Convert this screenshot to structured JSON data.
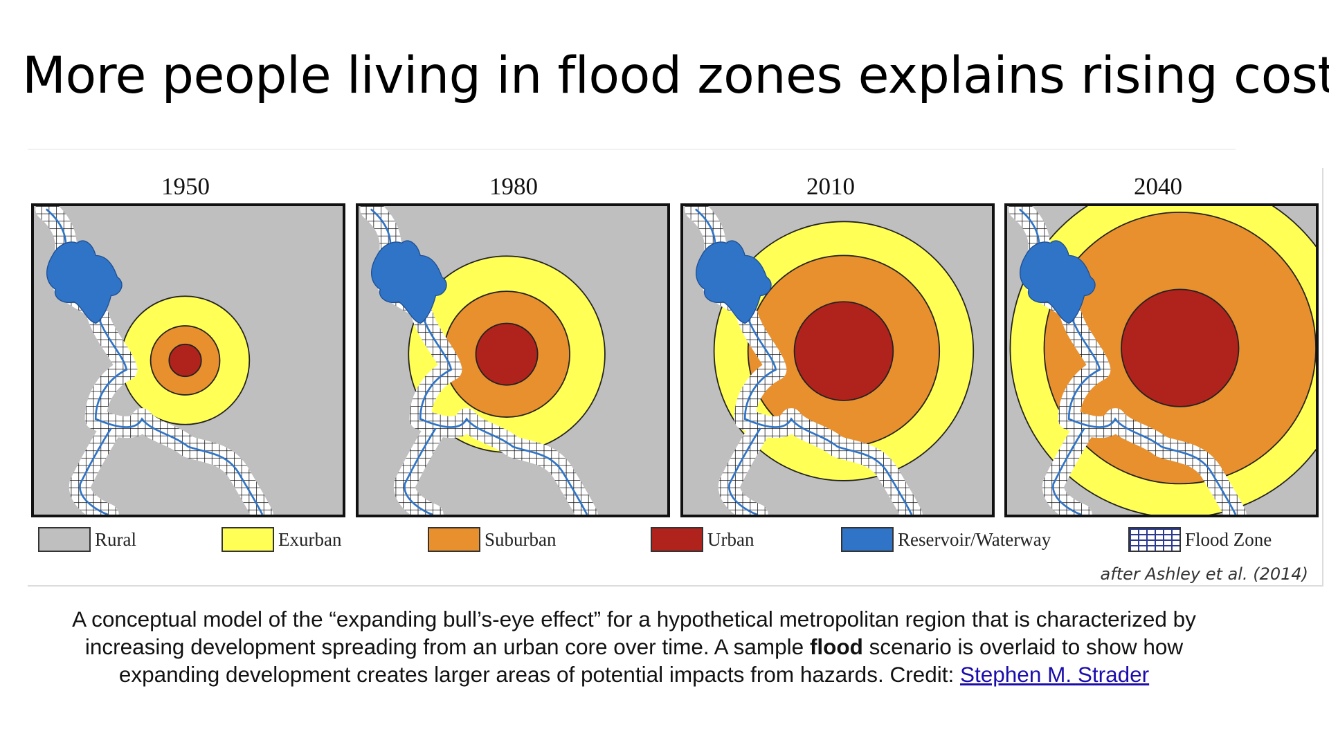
{
  "slide": {
    "title": "More people living in flood zones explains rising costs"
  },
  "figure": {
    "panels": [
      {
        "year": "1950",
        "rings": [
          [
            "Exurban",
            0.208
          ],
          [
            "Suburban",
            0.112
          ],
          [
            "Urban",
            0.052
          ]
        ]
      },
      {
        "year": "1980",
        "rings": [
          [
            "Exurban",
            0.318
          ],
          [
            "Suburban",
            0.204
          ],
          [
            "Urban",
            0.1
          ]
        ]
      },
      {
        "year": "2010",
        "rings": [
          [
            "Exurban",
            0.42
          ],
          [
            "Suburban",
            0.31
          ],
          [
            "Urban",
            0.16
          ]
        ]
      },
      {
        "year": "2040",
        "rings": [
          [
            "Exurban",
            0.55
          ],
          [
            "Suburban",
            0.44
          ],
          [
            "Urban",
            0.19
          ]
        ]
      }
    ],
    "legend": [
      {
        "label": "Rural",
        "color": "#bfbfbf",
        "icon": "rural-swatch"
      },
      {
        "label": "Exurban",
        "color": "#ffff55",
        "icon": "exurban-swatch"
      },
      {
        "label": "Suburban",
        "color": "#e8902e",
        "icon": "suburban-swatch"
      },
      {
        "label": "Urban",
        "color": "#b0231c",
        "icon": "urban-swatch"
      },
      {
        "label": "Reservoir/Waterway",
        "color": "#2f74c7",
        "icon": "reservoir-swatch"
      },
      {
        "label": "Flood Zone",
        "color": "#2b3a8f",
        "icon": "flood-zone-grid-swatch"
      }
    ],
    "citation": "after Ashley et al. (2014)"
  },
  "caption": {
    "line1": "A conceptual model of the “expanding bull’s-eye effect” for a hypothetical metropolitan region that is characterized by",
    "line2_before": "increasing development spreading from an urban core over time. A sample ",
    "line2_bold": "flood",
    "line2_after": " scenario is overlaid to show how",
    "line3": "expanding development creates larger areas of potential impacts from hazards. Credit: ",
    "credit_link": "Stephen M. Strader"
  }
}
